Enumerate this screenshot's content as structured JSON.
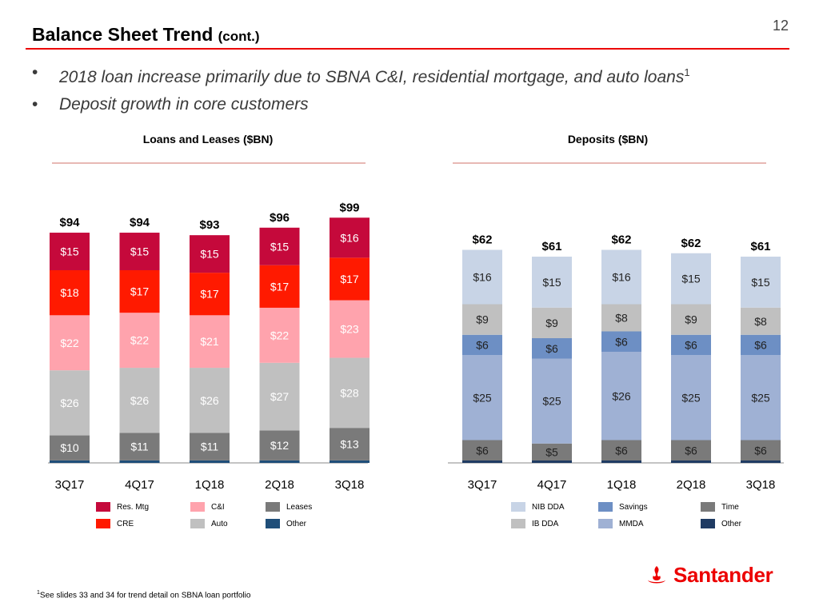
{
  "header": {
    "title": "Balance Sheet Trend",
    "title_suffix": "(cont.)",
    "page_number": "12"
  },
  "bullets": [
    {
      "text": "2018 loan increase primarily due to SBNA C&I, residential mortgage, and auto loans",
      "sup": "1"
    },
    {
      "text": "Deposit growth in core customers",
      "sup": ""
    }
  ],
  "bullet_marker": "•",
  "footnote": {
    "sup": "1",
    "text": "See slides 33 and 34 for trend detail on SBNA loan portfolio"
  },
  "logo": {
    "text": "Santander"
  },
  "chart_data": [
    {
      "type": "bar",
      "stacked": true,
      "title": "Loans and Leases ($BN)",
      "categories": [
        "3Q17",
        "4Q17",
        "1Q18",
        "2Q18",
        "3Q18"
      ],
      "totals": [
        "$94",
        "$94",
        "$93",
        "$96",
        "$99"
      ],
      "ylim": [
        0,
        99
      ],
      "series": [
        {
          "name": "Other",
          "color": "#1f4e79",
          "values": [
            1,
            1,
            1,
            1,
            1
          ],
          "labels": [
            "",
            "",
            "",
            "",
            ""
          ]
        },
        {
          "name": "Leases",
          "color": "#7a7a7a",
          "values": [
            10,
            11,
            11,
            12,
            13
          ],
          "labels": [
            "$10",
            "$11",
            "$11",
            "$12",
            "$13"
          ]
        },
        {
          "name": "Auto",
          "color": "#c0c0c0",
          "values": [
            26,
            26,
            26,
            27,
            28
          ],
          "labels": [
            "$26",
            "$26",
            "$26",
            "$27",
            "$28"
          ]
        },
        {
          "name": "C&I",
          "color": "#ffa3ad",
          "values": [
            22,
            22,
            21,
            22,
            23
          ],
          "labels": [
            "$22",
            "$22",
            "$21",
            "$22",
            "$23"
          ]
        },
        {
          "name": "CRE",
          "color": "#ff1a00",
          "values": [
            18,
            17,
            17,
            17,
            17
          ],
          "labels": [
            "$18",
            "$17",
            "$17",
            "$17",
            "$17"
          ]
        },
        {
          "name": "Res. Mtg",
          "color": "#c5093b",
          "values": [
            15,
            15,
            15,
            15,
            16
          ],
          "labels": [
            "$15",
            "$15",
            "$15",
            "$15",
            "$16"
          ]
        }
      ],
      "legend": [
        "Res. Mtg",
        "C&I",
        "Leases",
        "CRE",
        "Auto",
        "Other"
      ]
    },
    {
      "type": "bar",
      "stacked": true,
      "title": "Deposits ($BN)",
      "categories": [
        "3Q17",
        "4Q17",
        "1Q18",
        "2Q18",
        "3Q18"
      ],
      "totals": [
        "$62",
        "$61",
        "$62",
        "$62",
        "$61"
      ],
      "ylim": [
        0,
        99
      ],
      "series": [
        {
          "name": "Other",
          "color": "#1f3b63",
          "values": [
            0.6,
            0.6,
            0.6,
            0.6,
            0.6
          ],
          "labels": [
            "",
            "",
            "",
            "",
            ""
          ]
        },
        {
          "name": "Time",
          "color": "#7a7a7a",
          "values": [
            6,
            5,
            6,
            6,
            6
          ],
          "labels": [
            "$6",
            "$5",
            "$6",
            "$6",
            "$6"
          ]
        },
        {
          "name": "MMDA",
          "color": "#9fb1d4",
          "values": [
            25,
            25,
            26,
            25,
            25
          ],
          "labels": [
            "$25",
            "$25",
            "$26",
            "$25",
            "$25"
          ]
        },
        {
          "name": "Savings",
          "color": "#6d8fc4",
          "values": [
            6,
            6,
            6,
            6,
            6
          ],
          "labels": [
            "$6",
            "$6",
            "$6",
            "$6",
            "$6"
          ]
        },
        {
          "name": "IB DDA",
          "color": "#c0c0c0",
          "values": [
            9,
            9,
            8,
            9,
            8
          ],
          "labels": [
            "$9",
            "$9",
            "$8",
            "$9",
            "$8"
          ]
        },
        {
          "name": "NIB DDA",
          "color": "#c8d4e6",
          "values": [
            16,
            15,
            16,
            15,
            15
          ],
          "labels": [
            "$16",
            "$15",
            "$16",
            "$15",
            "$15"
          ]
        }
      ],
      "legend": [
        "NIB DDA",
        "Savings",
        "Time",
        "IB DDA",
        "MMDA",
        "Other"
      ]
    }
  ]
}
